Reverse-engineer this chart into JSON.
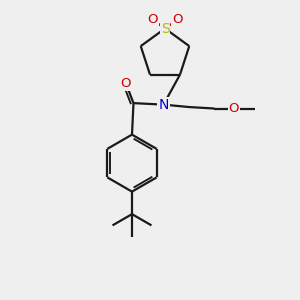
{
  "bg_color": "#efefef",
  "bond_color": "#1a1a1a",
  "S_color": "#b8b800",
  "O_color": "#cc0000",
  "N_color": "#0000cc",
  "lw": 1.6,
  "lw_thin": 1.1,
  "figsize": [
    3.0,
    3.0
  ],
  "dpi": 100,
  "xlim": [
    0,
    10
  ],
  "ylim": [
    0,
    10
  ]
}
